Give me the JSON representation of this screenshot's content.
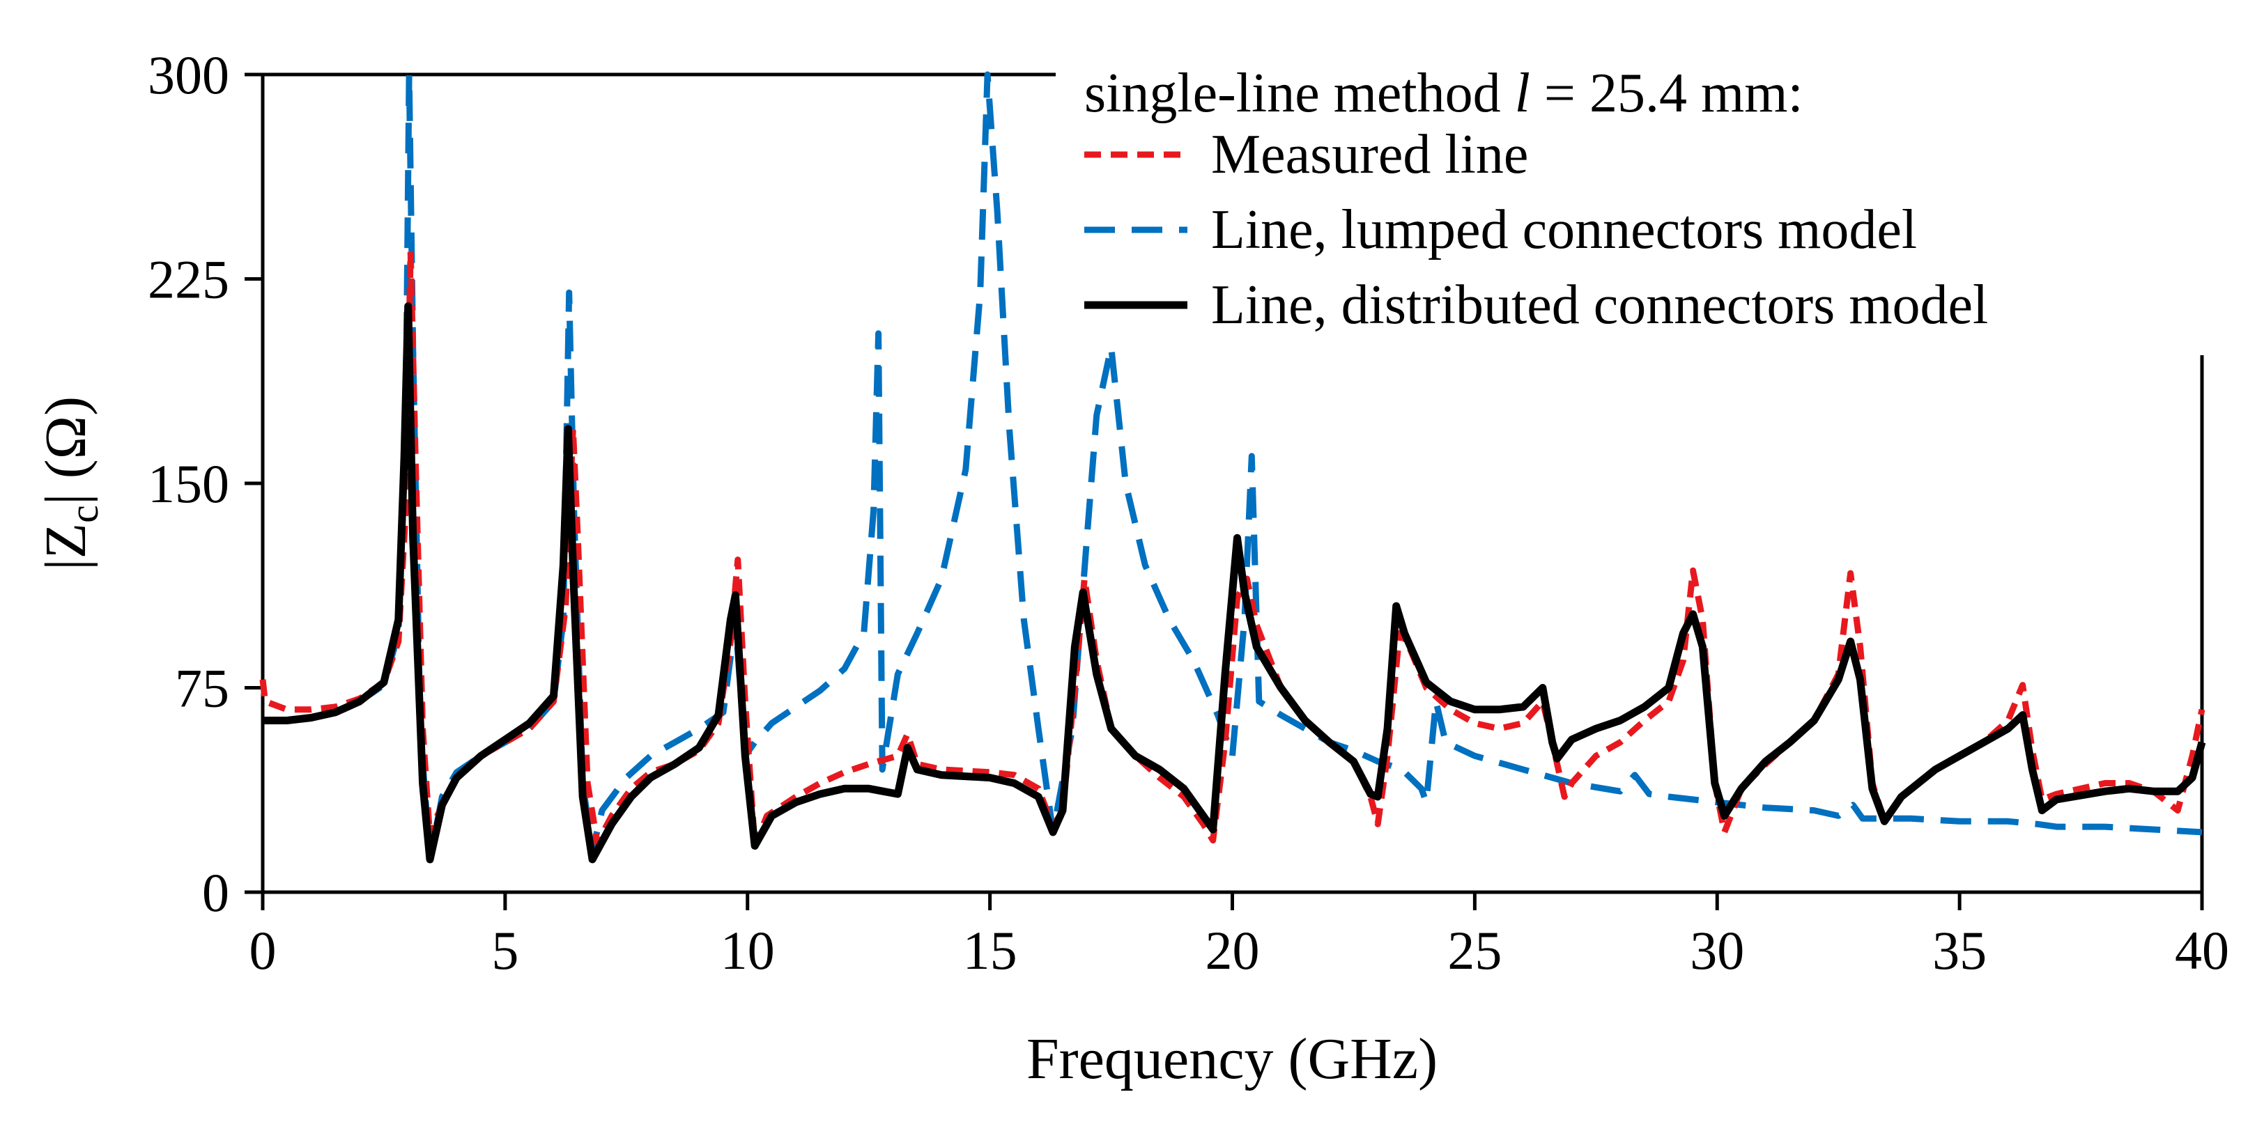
{
  "chart_data": {
    "type": "line",
    "xlabel": "Frequency (GHz)",
    "ylabel": {
      "prefix": "|Z",
      "sub": "c",
      "suffix": "| (Ω)"
    },
    "xlim": [
      0,
      40
    ],
    "ylim": [
      0,
      300
    ],
    "xticks": [
      0,
      5,
      10,
      15,
      20,
      25,
      30,
      35,
      40
    ],
    "yticks": [
      0,
      75,
      150,
      225,
      300
    ],
    "grid": false,
    "legend": {
      "placement": "top-right",
      "title": {
        "prefix": "single-line method ",
        "var": "l",
        "suffix": " = 25.4 mm:"
      }
    },
    "series": [
      {
        "name": "Measured line",
        "color": "#e8191e",
        "style": "short-dash",
        "points": [
          [
            0,
            78
          ],
          [
            0.05,
            70
          ],
          [
            0.5,
            67
          ],
          [
            1,
            67
          ],
          [
            1.5,
            68
          ],
          [
            2,
            71
          ],
          [
            2.5,
            77
          ],
          [
            2.8,
            92
          ],
          [
            2.95,
            140
          ],
          [
            3.05,
            235
          ],
          [
            3.15,
            160
          ],
          [
            3.3,
            60
          ],
          [
            3.45,
            20
          ],
          [
            3.6,
            28
          ],
          [
            4,
            42
          ],
          [
            4.5,
            50
          ],
          [
            5,
            55
          ],
          [
            5.5,
            60
          ],
          [
            6,
            70
          ],
          [
            6.25,
            105
          ],
          [
            6.4,
            170
          ],
          [
            6.5,
            130
          ],
          [
            6.7,
            40
          ],
          [
            6.9,
            18
          ],
          [
            7.2,
            28
          ],
          [
            7.6,
            38
          ],
          [
            8,
            44
          ],
          [
            8.5,
            47
          ],
          [
            9,
            52
          ],
          [
            9.4,
            62
          ],
          [
            9.65,
            92
          ],
          [
            9.8,
            122
          ],
          [
            9.95,
            70
          ],
          [
            10.15,
            17
          ],
          [
            10.4,
            28
          ],
          [
            11,
            35
          ],
          [
            11.5,
            40
          ],
          [
            12,
            44
          ],
          [
            12.5,
            47
          ],
          [
            13.1,
            50
          ],
          [
            13.3,
            58
          ],
          [
            13.5,
            47
          ],
          [
            14,
            45
          ],
          [
            15,
            44
          ],
          [
            15.5,
            43
          ],
          [
            16,
            38
          ],
          [
            16.3,
            24
          ],
          [
            16.5,
            30
          ],
          [
            16.75,
            75
          ],
          [
            16.95,
            115
          ],
          [
            17.2,
            85
          ],
          [
            17.5,
            60
          ],
          [
            18,
            50
          ],
          [
            18.5,
            42
          ],
          [
            19,
            35
          ],
          [
            19.4,
            25
          ],
          [
            19.6,
            19
          ],
          [
            19.85,
            55
          ],
          [
            20.1,
            108
          ],
          [
            20.3,
            115
          ],
          [
            20.5,
            98
          ],
          [
            21,
            75
          ],
          [
            21.5,
            63
          ],
          [
            22,
            55
          ],
          [
            22.5,
            48
          ],
          [
            22.85,
            35
          ],
          [
            23,
            25
          ],
          [
            23.2,
            50
          ],
          [
            23.45,
            95
          ],
          [
            23.6,
            92
          ],
          [
            24,
            75
          ],
          [
            24.5,
            67
          ],
          [
            25,
            62
          ],
          [
            25.5,
            60
          ],
          [
            26,
            62
          ],
          [
            26.4,
            70
          ],
          [
            26.6,
            55
          ],
          [
            26.85,
            35
          ],
          [
            27,
            40
          ],
          [
            27.5,
            50
          ],
          [
            28,
            55
          ],
          [
            28.5,
            63
          ],
          [
            29,
            70
          ],
          [
            29.3,
            85
          ],
          [
            29.5,
            118
          ],
          [
            29.7,
            100
          ],
          [
            29.95,
            40
          ],
          [
            30.15,
            22
          ],
          [
            30.5,
            38
          ],
          [
            31,
            47
          ],
          [
            31.5,
            55
          ],
          [
            32,
            63
          ],
          [
            32.5,
            80
          ],
          [
            32.75,
            117
          ],
          [
            32.95,
            90
          ],
          [
            33.2,
            40
          ],
          [
            33.45,
            26
          ],
          [
            33.8,
            35
          ],
          [
            34.5,
            45
          ],
          [
            35,
            50
          ],
          [
            35.5,
            55
          ],
          [
            36,
            63
          ],
          [
            36.3,
            76
          ],
          [
            36.5,
            52
          ],
          [
            36.7,
            34
          ],
          [
            37,
            36
          ],
          [
            38,
            40
          ],
          [
            38.5,
            40
          ],
          [
            39,
            37
          ],
          [
            39.5,
            30
          ],
          [
            39.8,
            50
          ],
          [
            40,
            67
          ]
        ]
      },
      {
        "name": "Line, lumped connectors model",
        "color": "#0070c0",
        "style": "long-dash",
        "points": [
          [
            0,
            63
          ],
          [
            0.5,
            63
          ],
          [
            1,
            64
          ],
          [
            1.5,
            66
          ],
          [
            2,
            70
          ],
          [
            2.5,
            76
          ],
          [
            2.8,
            95
          ],
          [
            2.95,
            170
          ],
          [
            3.02,
            300
          ],
          [
            3.1,
            200
          ],
          [
            3.25,
            60
          ],
          [
            3.45,
            12
          ],
          [
            3.7,
            35
          ],
          [
            4,
            44
          ],
          [
            4.5,
            50
          ],
          [
            5,
            55
          ],
          [
            5.5,
            60
          ],
          [
            6,
            70
          ],
          [
            6.2,
            100
          ],
          [
            6.32,
            220
          ],
          [
            6.42,
            140
          ],
          [
            6.6,
            40
          ],
          [
            6.8,
            15
          ],
          [
            7,
            30
          ],
          [
            7.5,
            42
          ],
          [
            8,
            50
          ],
          [
            8.5,
            55
          ],
          [
            9,
            60
          ],
          [
            9.5,
            66
          ],
          [
            9.75,
            100
          ],
          [
            9.95,
            50
          ],
          [
            10.15,
            55
          ],
          [
            10.5,
            62
          ],
          [
            11,
            68
          ],
          [
            11.5,
            74
          ],
          [
            12,
            82
          ],
          [
            12.4,
            95
          ],
          [
            12.6,
            140
          ],
          [
            12.7,
            205
          ],
          [
            12.78,
            45
          ],
          [
            13.1,
            80
          ],
          [
            13.5,
            95
          ],
          [
            14,
            115
          ],
          [
            14.5,
            155
          ],
          [
            14.8,
            220
          ],
          [
            14.95,
            300
          ],
          [
            15.15,
            250
          ],
          [
            15.4,
            170
          ],
          [
            15.7,
            100
          ],
          [
            16,
            60
          ],
          [
            16.3,
            22
          ],
          [
            16.7,
            60
          ],
          [
            17,
            130
          ],
          [
            17.2,
            175
          ],
          [
            17.5,
            200
          ],
          [
            17.8,
            150
          ],
          [
            18.2,
            120
          ],
          [
            18.7,
            100
          ],
          [
            19.2,
            85
          ],
          [
            19.7,
            65
          ],
          [
            20,
            50
          ],
          [
            20.25,
            100
          ],
          [
            20.4,
            160
          ],
          [
            20.55,
            70
          ],
          [
            21,
            65
          ],
          [
            21.5,
            60
          ],
          [
            22,
            55
          ],
          [
            22.5,
            52
          ],
          [
            23,
            48
          ],
          [
            23.5,
            45
          ],
          [
            23.9,
            38
          ],
          [
            24,
            33
          ],
          [
            24.2,
            70
          ],
          [
            24.4,
            55
          ],
          [
            25,
            50
          ],
          [
            26,
            45
          ],
          [
            27,
            40
          ],
          [
            28,
            37
          ],
          [
            28.3,
            43
          ],
          [
            28.6,
            36
          ],
          [
            29,
            35
          ],
          [
            30,
            33
          ],
          [
            31,
            31
          ],
          [
            32,
            30
          ],
          [
            32.5,
            28
          ],
          [
            32.8,
            32
          ],
          [
            33,
            27
          ],
          [
            34,
            27
          ],
          [
            35,
            26
          ],
          [
            36,
            26
          ],
          [
            36.6,
            25
          ],
          [
            37,
            24
          ],
          [
            38,
            24
          ],
          [
            39,
            23
          ],
          [
            40,
            22
          ]
        ]
      },
      {
        "name": "Line, distributed connectors model",
        "color": "#000000",
        "style": "solid",
        "points": [
          [
            0,
            63
          ],
          [
            0.5,
            63
          ],
          [
            1,
            64
          ],
          [
            1.5,
            66
          ],
          [
            2,
            70
          ],
          [
            2.5,
            77
          ],
          [
            2.8,
            100
          ],
          [
            2.92,
            160
          ],
          [
            3,
            215
          ],
          [
            3.1,
            130
          ],
          [
            3.3,
            40
          ],
          [
            3.45,
            12
          ],
          [
            3.7,
            32
          ],
          [
            4,
            42
          ],
          [
            4.5,
            50
          ],
          [
            5,
            56
          ],
          [
            5.5,
            62
          ],
          [
            6,
            72
          ],
          [
            6.2,
            120
          ],
          [
            6.3,
            170
          ],
          [
            6.42,
            110
          ],
          [
            6.6,
            35
          ],
          [
            6.8,
            12
          ],
          [
            7.2,
            25
          ],
          [
            7.6,
            35
          ],
          [
            8,
            42
          ],
          [
            8.5,
            47
          ],
          [
            9,
            53
          ],
          [
            9.4,
            65
          ],
          [
            9.65,
            100
          ],
          [
            9.75,
            109
          ],
          [
            9.95,
            50
          ],
          [
            10.15,
            17
          ],
          [
            10.5,
            28
          ],
          [
            11,
            33
          ],
          [
            11.5,
            36
          ],
          [
            12,
            38
          ],
          [
            12.5,
            38
          ],
          [
            13.1,
            36
          ],
          [
            13.3,
            53
          ],
          [
            13.5,
            45
          ],
          [
            14,
            43
          ],
          [
            15,
            42
          ],
          [
            15.5,
            40
          ],
          [
            16,
            35
          ],
          [
            16.3,
            22
          ],
          [
            16.5,
            30
          ],
          [
            16.75,
            90
          ],
          [
            16.92,
            110
          ],
          [
            17.2,
            80
          ],
          [
            17.5,
            60
          ],
          [
            18,
            50
          ],
          [
            18.5,
            45
          ],
          [
            19,
            38
          ],
          [
            19.4,
            28
          ],
          [
            19.6,
            23
          ],
          [
            19.85,
            80
          ],
          [
            20.1,
            130
          ],
          [
            20.25,
            110
          ],
          [
            20.5,
            90
          ],
          [
            21,
            75
          ],
          [
            21.5,
            63
          ],
          [
            22,
            55
          ],
          [
            22.5,
            48
          ],
          [
            22.85,
            36
          ],
          [
            23,
            35
          ],
          [
            23.2,
            60
          ],
          [
            23.38,
            105
          ],
          [
            23.55,
            95
          ],
          [
            24,
            77
          ],
          [
            24.5,
            70
          ],
          [
            25,
            67
          ],
          [
            25.5,
            67
          ],
          [
            26,
            68
          ],
          [
            26.4,
            75
          ],
          [
            26.6,
            55
          ],
          [
            26.7,
            49
          ],
          [
            27,
            56
          ],
          [
            27.5,
            60
          ],
          [
            28,
            63
          ],
          [
            28.5,
            68
          ],
          [
            29,
            75
          ],
          [
            29.3,
            95
          ],
          [
            29.5,
            102
          ],
          [
            29.7,
            90
          ],
          [
            29.95,
            40
          ],
          [
            30.15,
            28
          ],
          [
            30.5,
            38
          ],
          [
            31,
            48
          ],
          [
            31.5,
            55
          ],
          [
            32,
            63
          ],
          [
            32.5,
            78
          ],
          [
            32.75,
            92
          ],
          [
            32.95,
            78
          ],
          [
            33.2,
            38
          ],
          [
            33.45,
            26
          ],
          [
            33.8,
            35
          ],
          [
            34.5,
            45
          ],
          [
            35,
            50
          ],
          [
            35.5,
            55
          ],
          [
            36,
            60
          ],
          [
            36.3,
            65
          ],
          [
            36.5,
            45
          ],
          [
            36.7,
            30
          ],
          [
            37,
            34
          ],
          [
            38,
            37
          ],
          [
            38.5,
            38
          ],
          [
            39,
            37
          ],
          [
            39.5,
            37
          ],
          [
            39.8,
            42
          ],
          [
            40,
            55
          ]
        ]
      }
    ]
  }
}
